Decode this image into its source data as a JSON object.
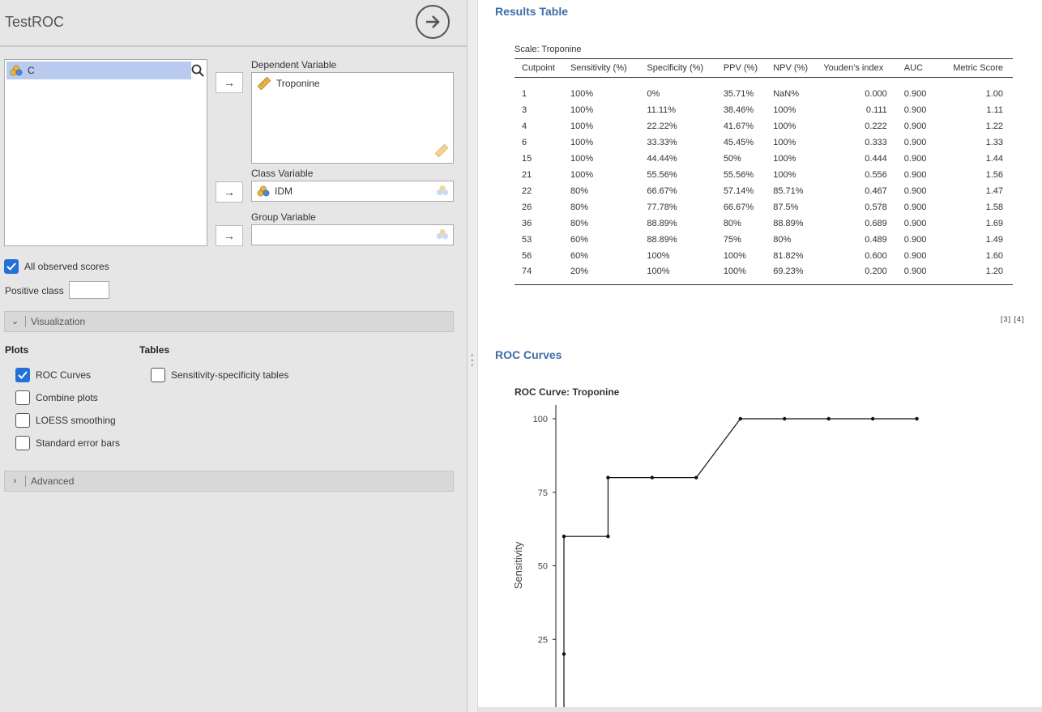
{
  "analysis": {
    "title": "TestROC"
  },
  "variables": {
    "list": [
      "C"
    ],
    "dependent_label": "Dependent Variable",
    "dependent_items": [
      "Troponine"
    ],
    "class_label": "Class Variable",
    "class_item": "IDM",
    "group_label": "Group Variable",
    "group_item": ""
  },
  "options": {
    "all_observed_scores": {
      "label": "All observed scores",
      "checked": true
    },
    "positive_class_label": "Positive class",
    "positive_class_value": ""
  },
  "sections": {
    "visualization": "Visualization",
    "advanced": "Advanced"
  },
  "plots": {
    "heading": "Plots",
    "roc_curves": {
      "label": "ROC Curves",
      "checked": true
    },
    "combine_plots": {
      "label": "Combine plots",
      "checked": false
    },
    "loess": {
      "label": "LOESS smoothing",
      "checked": false
    },
    "se_bars": {
      "label": "Standard error bars",
      "checked": false
    }
  },
  "tables": {
    "heading": "Tables",
    "sens_spec": {
      "label": "Sensitivity-specificity tables",
      "checked": false
    }
  },
  "results": {
    "heading": "Results Table",
    "caption": "Scale: Troponine",
    "columns": [
      "Cutpoint",
      "Sensitivity (%)",
      "Specificity (%)",
      "PPV (%)",
      "NPV (%)",
      "Youden's index",
      "AUC",
      "Metric Score"
    ],
    "rows": [
      [
        "1",
        "100%",
        "0%",
        "35.71%",
        "NaN%",
        "0.000",
        "0.900",
        "1.00"
      ],
      [
        "3",
        "100%",
        "11.11%",
        "38.46%",
        "100%",
        "0.111",
        "0.900",
        "1.11"
      ],
      [
        "4",
        "100%",
        "22.22%",
        "41.67%",
        "100%",
        "0.222",
        "0.900",
        "1.22"
      ],
      [
        "6",
        "100%",
        "33.33%",
        "45.45%",
        "100%",
        "0.333",
        "0.900",
        "1.33"
      ],
      [
        "15",
        "100%",
        "44.44%",
        "50%",
        "100%",
        "0.444",
        "0.900",
        "1.44"
      ],
      [
        "21",
        "100%",
        "55.56%",
        "55.56%",
        "100%",
        "0.556",
        "0.900",
        "1.56"
      ],
      [
        "22",
        "80%",
        "66.67%",
        "57.14%",
        "85.71%",
        "0.467",
        "0.900",
        "1.47"
      ],
      [
        "26",
        "80%",
        "77.78%",
        "66.67%",
        "87.5%",
        "0.578",
        "0.900",
        "1.58"
      ],
      [
        "36",
        "80%",
        "88.89%",
        "80%",
        "88.89%",
        "0.689",
        "0.900",
        "1.69"
      ],
      [
        "53",
        "60%",
        "88.89%",
        "75%",
        "80%",
        "0.489",
        "0.900",
        "1.49"
      ],
      [
        "56",
        "60%",
        "100%",
        "100%",
        "81.82%",
        "0.600",
        "0.900",
        "1.60"
      ],
      [
        "74",
        "20%",
        "100%",
        "100%",
        "69.23%",
        "0.200",
        "0.900",
        "1.20"
      ]
    ],
    "refs": "[3] [4]"
  },
  "roc": {
    "heading": "ROC Curves",
    "plot_title": "ROC Curve: Troponine"
  },
  "chart_data": {
    "type": "line",
    "title": "ROC Curve: Troponine",
    "xlabel": "",
    "ylabel": "Sensitivity",
    "yticks": [
      25,
      50,
      75,
      100
    ],
    "xlim": [
      0,
      100
    ],
    "ylim": [
      0,
      100
    ],
    "series": [
      {
        "x": [
          0,
          0,
          11.11,
          11.11,
          22.22,
          33.33,
          44.44,
          55.56,
          66.67,
          77.78,
          88.89
        ],
        "y": [
          20,
          60,
          60,
          80,
          80,
          80,
          100,
          100,
          100,
          100,
          100
        ]
      }
    ],
    "grid": false
  }
}
